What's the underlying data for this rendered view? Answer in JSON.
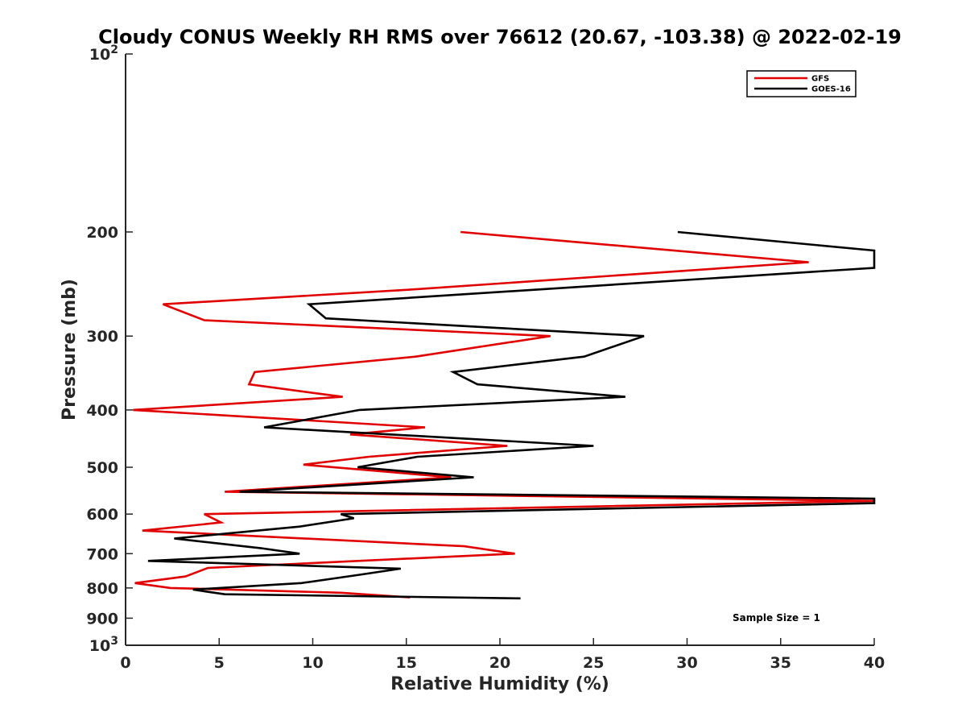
{
  "chart_data": {
    "type": "line",
    "title": "Cloudy CONUS Weekly RH RMS over 76612 (20.67, -103.38) @ 2022-02-19",
    "xlabel": "Relative Humidity (%)",
    "ylabel": "Pressure (mb)",
    "xlim": [
      0,
      40
    ],
    "ylim": [
      100,
      1000
    ],
    "yscale": "log",
    "y_reversed": true,
    "x_ticks": [
      "0",
      "5",
      "10",
      "15",
      "20",
      "25",
      "30",
      "35",
      "40"
    ],
    "y_ticks": [
      {
        "value": 100,
        "base": "10",
        "exp": "2"
      },
      {
        "value": 200,
        "label": "200"
      },
      {
        "value": 300,
        "label": "300"
      },
      {
        "value": 400,
        "label": "400"
      },
      {
        "value": 500,
        "label": "500"
      },
      {
        "value": 600,
        "label": "600"
      },
      {
        "value": 700,
        "label": "700"
      },
      {
        "value": 800,
        "label": "800"
      },
      {
        "value": 900,
        "label": "900"
      },
      {
        "value": 1000,
        "base": "10",
        "exp": "3"
      }
    ],
    "legend_position": "top-right",
    "annotation": "Sample Size = 1",
    "series": [
      {
        "name": "GFS",
        "color": "#e00000",
        "points": [
          [
            17.9,
            200
          ],
          [
            36.5,
            225
          ],
          [
            15.5,
            250
          ],
          [
            2.0,
            265
          ],
          [
            4.2,
            282
          ],
          [
            22.7,
            300
          ],
          [
            15.5,
            325
          ],
          [
            6.9,
            345
          ],
          [
            6.6,
            362
          ],
          [
            11.6,
            380
          ],
          [
            0.4,
            400
          ],
          [
            16.0,
            428
          ],
          [
            12.0,
            440
          ],
          [
            20.4,
            460
          ],
          [
            13.0,
            480
          ],
          [
            9.5,
            495
          ],
          [
            17.4,
            520
          ],
          [
            5.3,
            550
          ],
          [
            40.0,
            570
          ],
          [
            4.2,
            600
          ],
          [
            5.1,
            620
          ],
          [
            0.9,
            640
          ],
          [
            18.1,
            680
          ],
          [
            20.8,
            700
          ],
          [
            4.4,
            740
          ],
          [
            3.2,
            765
          ],
          [
            0.5,
            785
          ],
          [
            2.4,
            800
          ],
          [
            11.5,
            815
          ],
          [
            15.2,
            830
          ]
        ]
      },
      {
        "name": "GOES-16",
        "color": "#000000",
        "points": [
          [
            29.5,
            200
          ],
          [
            40.0,
            215
          ],
          [
            40.0,
            230
          ],
          [
            9.8,
            265
          ],
          [
            10.7,
            280
          ],
          [
            27.7,
            300
          ],
          [
            24.5,
            325
          ],
          [
            17.5,
            345
          ],
          [
            18.8,
            362
          ],
          [
            26.7,
            380
          ],
          [
            12.5,
            400
          ],
          [
            7.4,
            428
          ],
          [
            25.0,
            460
          ],
          [
            15.6,
            480
          ],
          [
            12.4,
            500
          ],
          [
            18.6,
            520
          ],
          [
            6.1,
            550
          ],
          [
            40.0,
            565
          ],
          [
            40.0,
            575
          ],
          [
            11.5,
            600
          ],
          [
            12.2,
            610
          ],
          [
            9.3,
            630
          ],
          [
            2.6,
            660
          ],
          [
            7.2,
            685
          ],
          [
            9.3,
            700
          ],
          [
            1.2,
            720
          ],
          [
            14.7,
            742
          ],
          [
            12.5,
            760
          ],
          [
            9.4,
            785
          ],
          [
            3.6,
            805
          ],
          [
            5.3,
            820
          ],
          [
            21.1,
            833
          ]
        ]
      }
    ]
  }
}
